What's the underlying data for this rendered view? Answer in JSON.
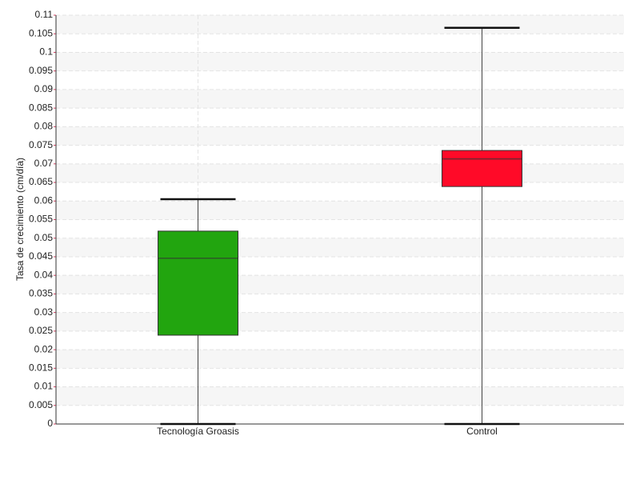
{
  "chart_data": {
    "type": "box",
    "ylabel": "Tasa de crecimiento (cm/día)",
    "categories": [
      "Tecnología Groasis",
      "Control"
    ],
    "colors": [
      "#22a50f",
      "#ff0a28"
    ],
    "boxes": [
      {
        "min": 0,
        "q1": 0.0239,
        "median": 0.0446,
        "q3": 0.0519,
        "max": 0.0605
      },
      {
        "min": 0,
        "q1": 0.0639,
        "median": 0.0713,
        "q3": 0.0736,
        "max": 0.1066
      }
    ],
    "ylim": [
      0,
      0.11
    ],
    "yticks": [
      0,
      0.005,
      0.01,
      0.015,
      0.02,
      0.025,
      0.03,
      0.035,
      0.04,
      0.045,
      0.05,
      0.055,
      0.06,
      0.065,
      0.07,
      0.075,
      0.08,
      0.085,
      0.09,
      0.095,
      0.1,
      0.105,
      0.11
    ],
    "grid": true
  }
}
